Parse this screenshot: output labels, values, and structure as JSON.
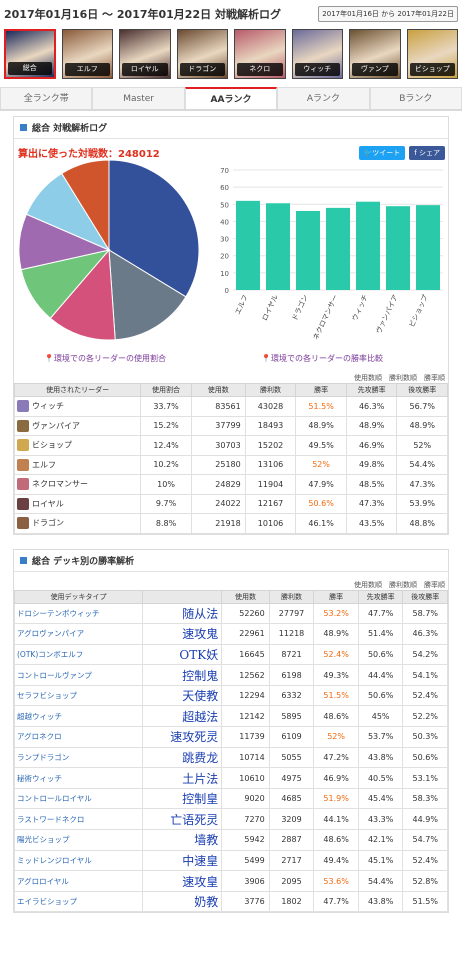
{
  "page_title": "2017年01月16日 ～ 2017年01月22日 対戦解析ログ",
  "date_range": "2017年01月16日 から 2017年01月22日",
  "leaders": [
    {
      "label": "総合",
      "selected": true,
      "color": "#1b2a5c"
    },
    {
      "label": "エルフ",
      "selected": false,
      "color": "#8a5a3a"
    },
    {
      "label": "ロイヤル",
      "selected": false,
      "color": "#4a3030"
    },
    {
      "label": "ドラゴン",
      "selected": false,
      "color": "#6a4a30"
    },
    {
      "label": "ネクロ",
      "selected": false,
      "color": "#b85a6a"
    },
    {
      "label": "ウィッチ",
      "selected": false,
      "color": "#6a6a9a"
    },
    {
      "label": "ヴァンプ",
      "selected": false,
      "color": "#6a5030"
    },
    {
      "label": "ビショップ",
      "selected": false,
      "color": "#c8a040"
    }
  ],
  "rank_tabs": [
    {
      "label": "全ランク帯",
      "active": false
    },
    {
      "label": "Master",
      "active": false
    },
    {
      "label": "AAランク",
      "active": true
    },
    {
      "label": "Aランク",
      "active": false
    },
    {
      "label": "Bランク",
      "active": false
    }
  ],
  "overall": {
    "heading": "総合 対戦解析ログ",
    "count_text": "算出に使った対戦数：248012",
    "tweet": "ツイート",
    "share": "シェア",
    "pie_caption": "環境での各リーダーの使用割合",
    "bar_caption": "環境での各リーダーの勝率比較",
    "sort_links": "使用数順　勝利数順　勝率順"
  },
  "chart_data": [
    {
      "type": "pie",
      "categories": [
        "ウィッチ",
        "ヴァンパイア",
        "ビショップ",
        "エルフ",
        "ネクロマンサー",
        "ロイヤル",
        "ドラゴン"
      ],
      "values": [
        33.7,
        15.2,
        12.4,
        10.2,
        10,
        9.7,
        8.8
      ],
      "colors": [
        "#33509a",
        "#6a7a88",
        "#d4517b",
        "#6fc57a",
        "#a06ab0",
        "#8ecde8",
        "#d0552c"
      ]
    },
    {
      "type": "bar",
      "categories": [
        "エルフ",
        "ロイヤル",
        "ドラゴン",
        "ネクロマンサー",
        "ウィッチ",
        "ヴァンパイア",
        "ビショップ"
      ],
      "values": [
        52,
        50.6,
        46.1,
        47.9,
        51.5,
        48.9,
        49.5
      ],
      "ylim": [
        0,
        70
      ],
      "yticks": [
        0,
        10,
        20,
        30,
        40,
        50,
        60,
        70
      ],
      "color": "#2ac9a9",
      "grid": true
    }
  ],
  "leader_table": {
    "headers": [
      "使用されたリーダー",
      "使用割合",
      "使用数",
      "勝利数",
      "勝率",
      "先攻勝率",
      "後攻勝率"
    ],
    "rows": [
      {
        "name": "ウィッチ",
        "share": "33.7%",
        "uses": "83561",
        "wins": "43028",
        "rate": "51.5%",
        "first": "46.3%",
        "second": "56.7%",
        "hi": true,
        "color": "#8a7ab8"
      },
      {
        "name": "ヴァンパイア",
        "share": "15.2%",
        "uses": "37799",
        "wins": "18493",
        "rate": "48.9%",
        "first": "48.9%",
        "second": "48.9%",
        "hi": false,
        "color": "#8a6a40"
      },
      {
        "name": "ビショップ",
        "share": "12.4%",
        "uses": "30703",
        "wins": "15202",
        "rate": "49.5%",
        "first": "46.9%",
        "second": "52%",
        "hi": false,
        "color": "#d0a850"
      },
      {
        "name": "エルフ",
        "share": "10.2%",
        "uses": "25180",
        "wins": "13106",
        "rate": "52%",
        "first": "49.8%",
        "second": "54.4%",
        "hi": true,
        "color": "#c08050"
      },
      {
        "name": "ネクロマンサー",
        "share": "10%",
        "uses": "24829",
        "wins": "11904",
        "rate": "47.9%",
        "first": "48.5%",
        "second": "47.3%",
        "hi": false,
        "color": "#c06a7a"
      },
      {
        "name": "ロイヤル",
        "share": "9.7%",
        "uses": "24022",
        "wins": "12167",
        "rate": "50.6%",
        "first": "47.3%",
        "second": "53.9%",
        "hi": true,
        "color": "#6a4040"
      },
      {
        "name": "ドラゴン",
        "share": "8.8%",
        "uses": "21918",
        "wins": "10106",
        "rate": "46.1%",
        "first": "43.5%",
        "second": "48.8%",
        "hi": false,
        "color": "#8a6040"
      }
    ]
  },
  "deck": {
    "heading": "総合 デッキ別の勝率解析",
    "sort_links": "使用数順　勝利数順　勝率順",
    "headers": [
      "使用デッキタイプ",
      "",
      "使用数",
      "勝利数",
      "勝率",
      "先攻勝率",
      "後攻勝率"
    ],
    "rows": [
      {
        "name": "ドロシーテンポウィッチ",
        "cn": "随从法",
        "uses": "52260",
        "wins": "27797",
        "rate": "53.2%",
        "first": "47.7%",
        "second": "58.7%",
        "hi": true
      },
      {
        "name": "アグロヴァンパイア",
        "cn": "速攻鬼",
        "uses": "22961",
        "wins": "11218",
        "rate": "48.9%",
        "first": "51.4%",
        "second": "46.3%",
        "hi": false
      },
      {
        "name": "(OTK)コンボエルフ",
        "cn": "OTK妖",
        "uses": "16645",
        "wins": "8721",
        "rate": "52.4%",
        "first": "50.6%",
        "second": "54.2%",
        "hi": true
      },
      {
        "name": "コントロールヴァンプ",
        "cn": "控制鬼",
        "uses": "12562",
        "wins": "6198",
        "rate": "49.3%",
        "first": "44.4%",
        "second": "54.1%",
        "hi": false
      },
      {
        "name": "セラフビショップ",
        "cn": "天使教",
        "uses": "12294",
        "wins": "6332",
        "rate": "51.5%",
        "first": "50.6%",
        "second": "52.4%",
        "hi": true
      },
      {
        "name": "超越ウィッチ",
        "cn": "超越法",
        "uses": "12142",
        "wins": "5895",
        "rate": "48.6%",
        "first": "45%",
        "second": "52.2%",
        "hi": false
      },
      {
        "name": "アグロネクロ",
        "cn": "速攻死灵",
        "uses": "11739",
        "wins": "6109",
        "rate": "52%",
        "first": "53.7%",
        "second": "50.3%",
        "hi": true
      },
      {
        "name": "ランプドラゴン",
        "cn": "跳费龙",
        "uses": "10714",
        "wins": "5055",
        "rate": "47.2%",
        "first": "43.8%",
        "second": "50.6%",
        "hi": false
      },
      {
        "name": "秘術ウィッチ",
        "cn": "土片法",
        "uses": "10610",
        "wins": "4975",
        "rate": "46.9%",
        "first": "40.5%",
        "second": "53.1%",
        "hi": false
      },
      {
        "name": "コントロールロイヤル",
        "cn": "控制皇",
        "uses": "9020",
        "wins": "4685",
        "rate": "51.9%",
        "first": "45.4%",
        "second": "58.3%",
        "hi": true
      },
      {
        "name": "ラストワードネクロ",
        "cn": "亡语死灵",
        "uses": "7270",
        "wins": "3209",
        "rate": "44.1%",
        "first": "43.3%",
        "second": "44.9%",
        "hi": false
      },
      {
        "name": "陽光ビショップ",
        "cn": "墙教",
        "uses": "5942",
        "wins": "2887",
        "rate": "48.6%",
        "first": "42.1%",
        "second": "54.7%",
        "hi": false
      },
      {
        "name": "ミッドレンジロイヤル",
        "cn": "中速皇",
        "uses": "5499",
        "wins": "2717",
        "rate": "49.4%",
        "first": "45.1%",
        "second": "52.4%",
        "hi": false
      },
      {
        "name": "アグロロイヤル",
        "cn": "速攻皇",
        "uses": "3906",
        "wins": "2095",
        "rate": "53.6%",
        "first": "54.4%",
        "second": "52.8%",
        "hi": true
      },
      {
        "name": "エイラビショップ",
        "cn": "奶教",
        "uses": "3776",
        "wins": "1802",
        "rate": "47.7%",
        "first": "43.8%",
        "second": "51.5%",
        "hi": false
      }
    ]
  }
}
